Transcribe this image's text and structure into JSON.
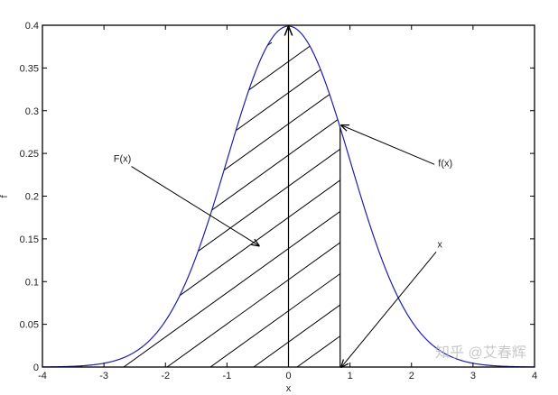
{
  "chart_data": {
    "type": "line",
    "title": "",
    "xlabel": "x",
    "ylabel": "f",
    "xlim": [
      -4,
      4
    ],
    "ylim": [
      0,
      0.4
    ],
    "xticks": [
      -4,
      -3,
      -2,
      -1,
      0,
      1,
      2,
      3,
      4
    ],
    "xtick_labels": [
      "-4",
      "-3",
      "-2",
      "-1",
      "0",
      "1",
      "2",
      "3",
      "4"
    ],
    "yticks": [
      0,
      0.05,
      0.1,
      0.15,
      0.2,
      0.25,
      0.3,
      0.35,
      0.4
    ],
    "ytick_labels": [
      "0",
      "0.05",
      "0.1",
      "0.15",
      "0.2",
      "0.25",
      "0.3",
      "0.35",
      "0.4"
    ],
    "grid": false,
    "series": [
      {
        "function": "standard normal pdf f(x) = exp(-x^2/2)/sqrt(2*pi)",
        "color": "#1f1fa8",
        "x_range": [
          -4,
          4
        ]
      }
    ],
    "shaded_region": {
      "from": -4,
      "to": 0.84,
      "style": "diagonal hatch"
    },
    "annotations": [
      {
        "text": "F(x)",
        "text_at": [
          -2.7,
          0.24
        ],
        "arrow_to": [
          -0.48,
          0.142
        ]
      },
      {
        "text": "f(x)",
        "text_at": [
          2.55,
          0.235
        ],
        "arrow_to": [
          0.86,
          0.283
        ]
      },
      {
        "text": "x",
        "text_at": [
          2.46,
          0.14
        ],
        "arrow_to": [
          0.86,
          0.0
        ]
      }
    ],
    "watermark": "知乎 @艾春辉"
  }
}
